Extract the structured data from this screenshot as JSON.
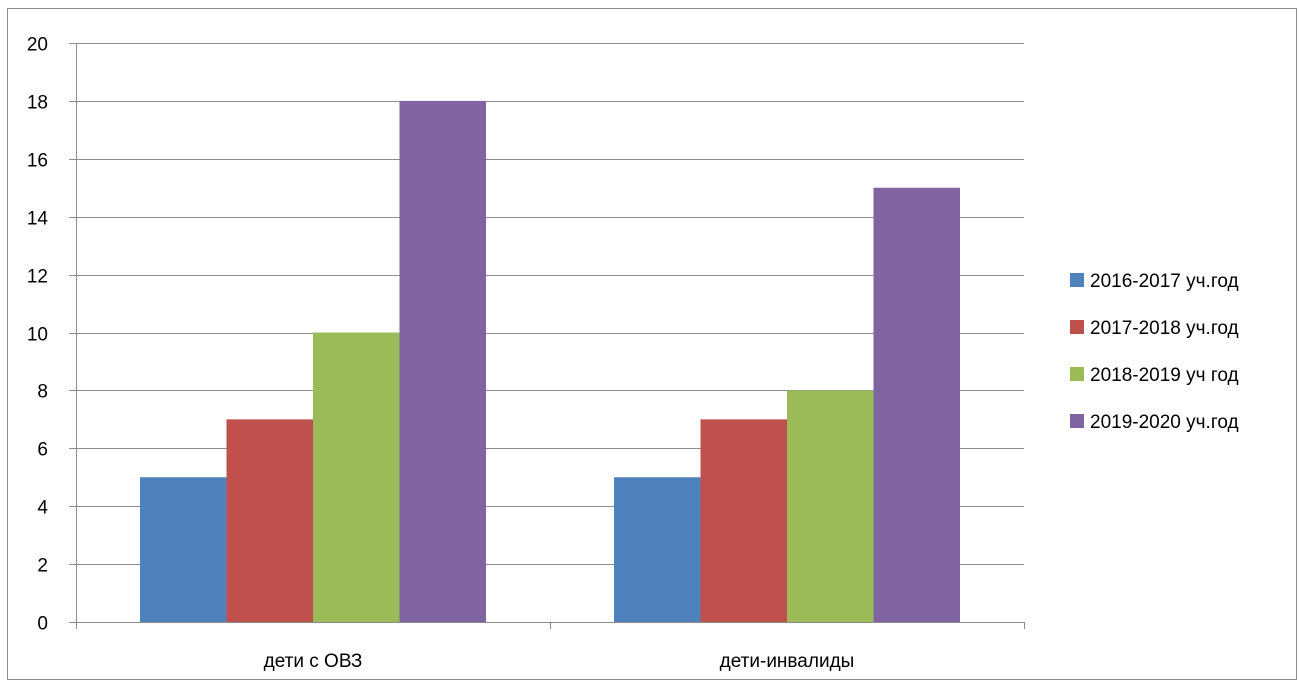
{
  "chart_data": {
    "type": "bar",
    "title": "",
    "xlabel": "",
    "ylabel": "",
    "categories": [
      "дети с ОВЗ",
      "дети-инвалиды"
    ],
    "series": [
      {
        "name": "2016-2017 уч.год",
        "values": [
          5,
          5
        ],
        "color": "#4F81BD"
      },
      {
        "name": "2017-2018 уч.год",
        "values": [
          7,
          7
        ],
        "color": "#C0504D"
      },
      {
        "name": "2018-2019 уч год",
        "values": [
          10,
          8
        ],
        "color": "#9BBB59"
      },
      {
        "name": "2019-2020 уч.год",
        "values": [
          18,
          15
        ],
        "color": "#8064A2"
      }
    ],
    "ylim": [
      0,
      20
    ],
    "yticks": [
      0,
      2,
      4,
      6,
      8,
      10,
      12,
      14,
      16,
      18,
      20
    ],
    "grid": true,
    "legend_position": "right"
  }
}
